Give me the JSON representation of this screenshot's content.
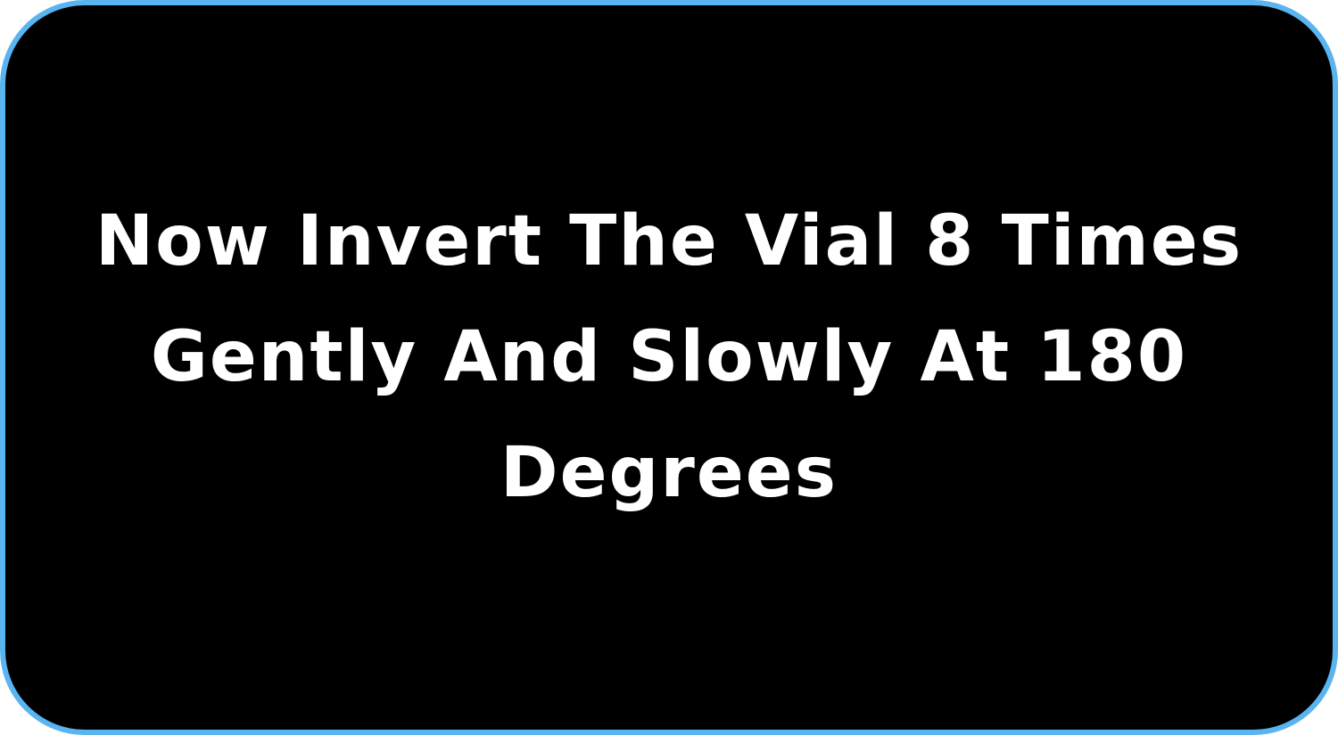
{
  "caption": {
    "line1": "Now Invert The Vial 8 Times",
    "line2": "Gently And Slowly At 180",
    "line3": "Degrees"
  },
  "colors": {
    "background": "#000000",
    "border": "#5ab4f0",
    "text": "#ffffff"
  }
}
